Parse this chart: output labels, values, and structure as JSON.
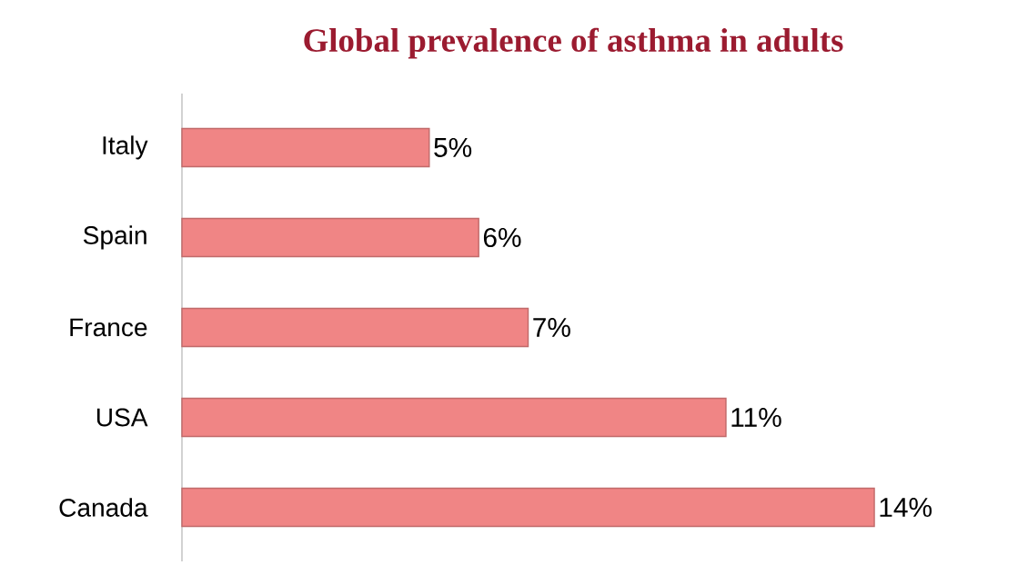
{
  "chart_data": {
    "type": "bar",
    "orientation": "horizontal",
    "title": "Global prevalence of asthma in adults",
    "categories": [
      "Italy",
      "Spain",
      "France",
      "USA",
      "Canada"
    ],
    "values": [
      5,
      6,
      7,
      11,
      14
    ],
    "value_labels": [
      "5%",
      "6%",
      "7%",
      "11%",
      "14%"
    ],
    "color": "#f08585"
  }
}
